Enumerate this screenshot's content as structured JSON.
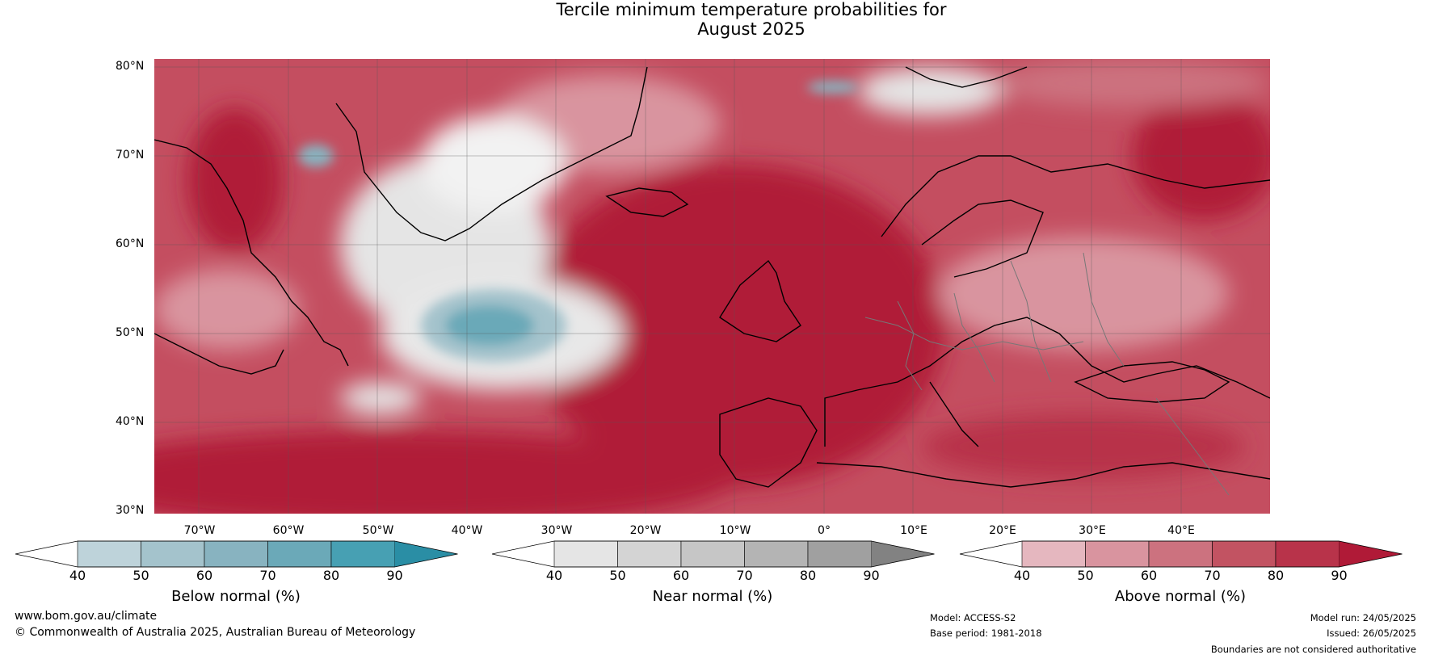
{
  "title_line1": "Tercile minimum temperature probabilities for",
  "title_line2": "August 2025",
  "lat_labels": [
    "80°N",
    "70°N",
    "60°N",
    "50°N",
    "40°N",
    "30°N"
  ],
  "lon_labels": [
    "70°W",
    "60°W",
    "50°W",
    "40°W",
    "30°W",
    "20°W",
    "10°W",
    "0°",
    "10°E",
    "20°E",
    "30°E",
    "40°E"
  ],
  "colorbars": [
    {
      "label": "Below normal (%)",
      "ticks": [
        "40",
        "50",
        "60",
        "70",
        "80",
        "90"
      ],
      "colors": [
        "#ffffff",
        "#bed3da",
        "#a4c3cc",
        "#88b3c0",
        "#6ba9b8",
        "#47a0b3",
        "#2a8ea5"
      ]
    },
    {
      "label": "Near normal (%)",
      "ticks": [
        "40",
        "50",
        "60",
        "70",
        "80",
        "90"
      ],
      "colors": [
        "#ffffff",
        "#e5e5e5",
        "#d4d4d4",
        "#c6c6c6",
        "#b4b4b4",
        "#a0a0a0",
        "#828282"
      ]
    },
    {
      "label": "Above normal (%)",
      "ticks": [
        "40",
        "50",
        "60",
        "70",
        "80",
        "90"
      ],
      "colors": [
        "#ffffff",
        "#e5b7bf",
        "#d9949f",
        "#cc727f",
        "#c25362",
        "#b8334a",
        "#b01a37"
      ]
    }
  ],
  "footer": {
    "website": "www.bom.gov.au/climate",
    "copyright": "© Commonwealth of Australia 2025, Australian Bureau of Meteorology",
    "model": "Model: ACCESS-S2",
    "base_period": "Base period: 1981-2018",
    "model_run": "Model run: 24/05/2025",
    "issued": "Issued: 26/05/2025",
    "disclaimer": "Boundaries are not considered authoritative"
  }
}
